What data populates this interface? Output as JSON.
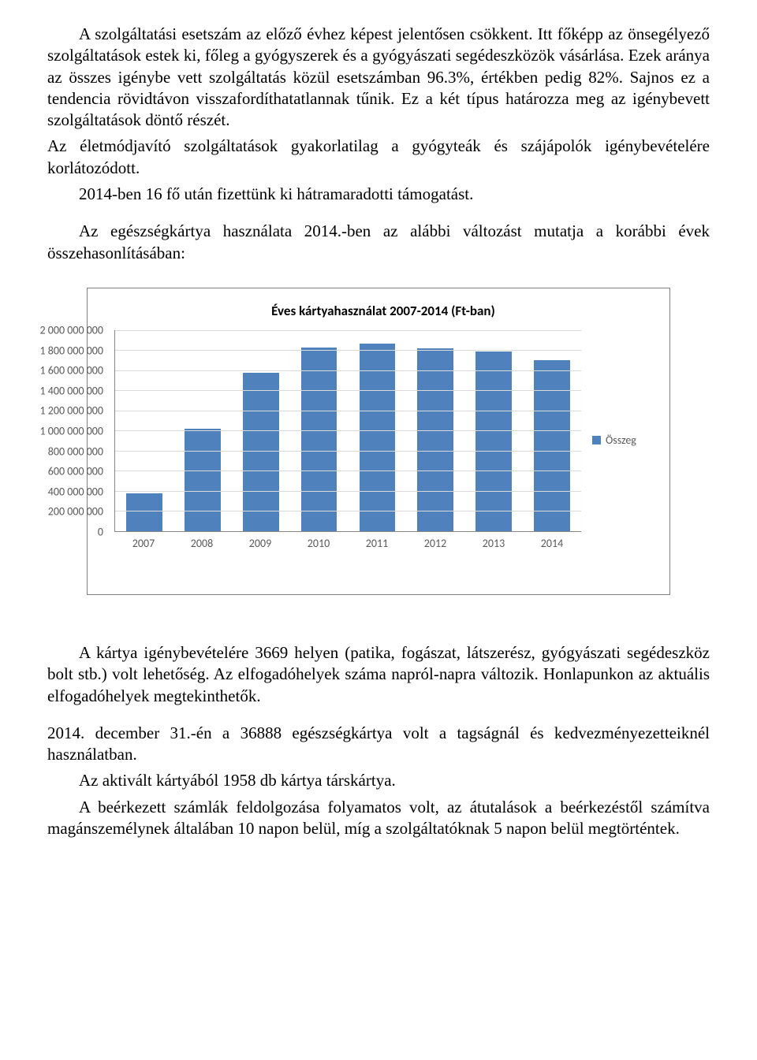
{
  "paragraphs": {
    "p1": "A szolgáltatási esetszám az előző évhez képest jelentősen csökkent. Itt főképp az önsegélyező szolgáltatások estek ki, főleg a gyógyszerek és a gyógyászati segédeszközök vásárlása. Ezek aránya az összes igénybe vett szolgáltatás közül esetszámban 96.3%, értékben pedig 82%. Sajnos ez a tendencia rövidtávon visszafordíthatatlannak tűnik. Ez a két típus határozza meg az igénybevett szolgáltatások döntő részét.",
    "p2": "Az életmódjavító szolgáltatások gyakorlatilag a gyógyteák és szájápolók igénybevételére korlátozódott.",
    "p3": "2014-ben 16 fő után fizettünk ki hátramaradotti támogatást.",
    "p4": "Az egészségkártya használata 2014.-ben az alábbi változást mutatja a korábbi évek összehasonlításában:",
    "p5": "A kártya igénybevételére 3669 helyen (patika, fogászat, látszerész, gyógyászati segédeszköz bolt stb.) volt lehetőség. Az elfogadóhelyek száma napról-napra változik. Honlapunkon az aktuális elfogadóhelyek megtekinthetők.",
    "p6": "2014. december 31.-én a 36888 egészségkártya volt a tagságnál és kedvezményezetteiknél használatban.",
    "p7": "Az aktivált kártyából 1958 db kártya társkártya.",
    "p8": "A beérkezett számlák feldolgozása folyamatos volt, az átutalások a beérkezéstől számítva magánszemélynek általában 10 napon belül, míg a szolgáltatóknak 5 napon belül megtörténtek."
  },
  "chart": {
    "type": "bar",
    "title": "Éves kártyahasználat 2007-2014  (Ft-ban)",
    "categories": [
      "2007",
      "2008",
      "2009",
      "2010",
      "2011",
      "2012",
      "2013",
      "2014"
    ],
    "values": [
      380000000,
      1020000000,
      1580000000,
      1830000000,
      1870000000,
      1820000000,
      1790000000,
      1700000000
    ],
    "bar_color": "#4f81bd",
    "ymin": 0,
    "ymax": 2000000000,
    "ytick_step": 200000000,
    "ytick_labels": [
      "0",
      "200 000 000",
      "400 000 000",
      "600 000 000",
      "800 000 000",
      "1 000 000 000",
      "1 200 000 000",
      "1 400 000 000",
      "1 600 000 000",
      "1 800 000 000",
      "2 000 000 000"
    ],
    "grid_color": "#d9d9d9",
    "axis_color": "#878787",
    "background_color": "#ffffff",
    "title_fontsize": 17,
    "label_fontsize": 14,
    "label_color": "#595959",
    "legend": {
      "label": "Összeg",
      "swatch_color": "#4f81bd"
    }
  }
}
